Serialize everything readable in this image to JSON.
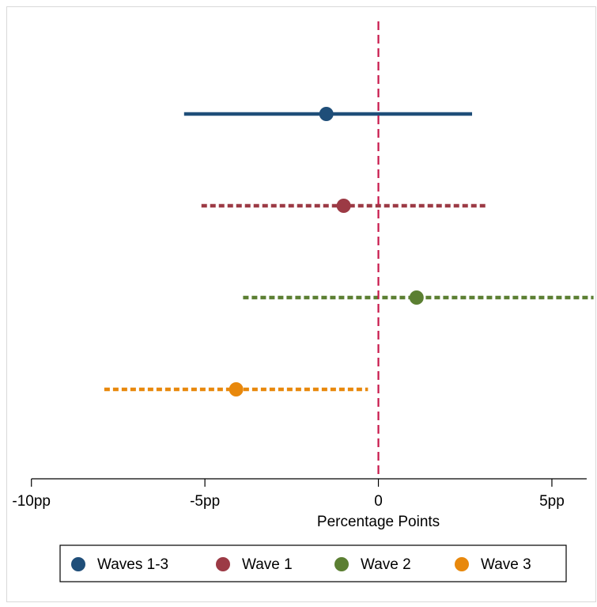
{
  "chart_data": {
    "type": "scatter",
    "subtype": "coefficient-plot-with-confidence-intervals",
    "xlabel": "Percentage Points",
    "xlim": [
      -10.7,
      6.3
    ],
    "x_ticks": [
      {
        "value": -10,
        "label": "-10pp"
      },
      {
        "value": -5,
        "label": "-5pp"
      },
      {
        "value": 0,
        "label": "0"
      },
      {
        "value": 5,
        "label": "5pp"
      }
    ],
    "reference_line": {
      "x": 0,
      "style": "dashed",
      "color": "#c8174a"
    },
    "grid": false,
    "legend_position": "bottom",
    "series": [
      {
        "name": "Waves 1-3",
        "estimate": -1.5,
        "ci_low": -5.6,
        "ci_high": 2.7,
        "color": "#1f4e79",
        "line_style": "solid"
      },
      {
        "name": "Wave 1",
        "estimate": -1.0,
        "ci_low": -5.1,
        "ci_high": 3.1,
        "color": "#9c3a45",
        "line_style": "dashed"
      },
      {
        "name": "Wave 2",
        "estimate": 1.1,
        "ci_low": -3.9,
        "ci_high": 6.2,
        "color": "#5b7f32",
        "line_style": "dashed"
      },
      {
        "name": "Wave 3",
        "estimate": -4.1,
        "ci_low": -7.9,
        "ci_high": -0.3,
        "color": "#e8880c",
        "line_style": "dashed"
      }
    ]
  }
}
